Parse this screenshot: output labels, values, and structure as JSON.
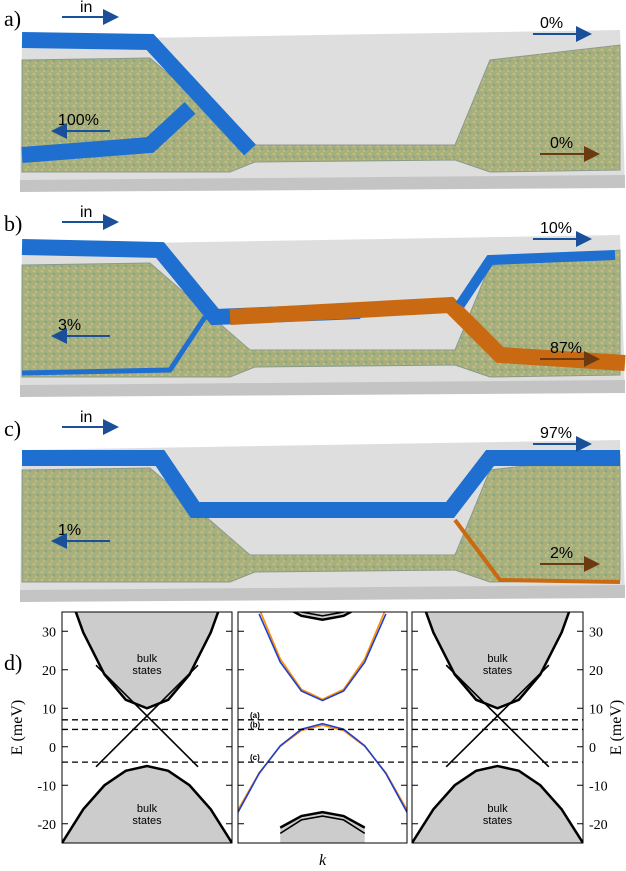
{
  "panels": [
    {
      "label": "a)",
      "input": "in",
      "outputs": [
        "100%",
        "0%",
        "0%"
      ]
    },
    {
      "label": "b)",
      "input": "in",
      "outputs": [
        "3%",
        "10%",
        "87%"
      ]
    },
    {
      "label": "c)",
      "input": "in",
      "outputs": [
        "1%",
        "97%",
        "2%"
      ]
    }
  ],
  "figure_label": "d)",
  "chart_data": [
    {
      "type": "line",
      "ylabel": "E (meV)",
      "ylim": [
        -25,
        35
      ],
      "xlim": [
        -1,
        1
      ],
      "yticks": [
        -20,
        -10,
        0,
        10,
        20,
        30
      ],
      "ytick_labels": "left",
      "hlines": [
        7,
        4.5,
        -4
      ],
      "annotations": [
        [
          "bulk",
          "states"
        ],
        [
          "bulk",
          "states"
        ]
      ],
      "series": [
        {
          "color": "#000000",
          "fill": "#cccccc",
          "fill_to": "top",
          "x": [
            -1,
            -0.75,
            -0.5,
            -0.25,
            0,
            0.25,
            0.5,
            0.75,
            1
          ],
          "values": [
            45,
            29.69,
            18.75,
            12.19,
            10,
            12.19,
            18.75,
            29.69,
            45
          ]
        },
        {
          "color": "#000000",
          "fill": "#cccccc",
          "fill_to": "bottom",
          "x": [
            -1,
            -0.75,
            -0.5,
            -0.25,
            0,
            0.25,
            0.5,
            0.75,
            1
          ],
          "values": [
            -25,
            -16.25,
            -10,
            -6.25,
            -5,
            -6.25,
            -10,
            -16.25,
            -25
          ]
        },
        {
          "color": "#000000",
          "x": [
            -0.6,
            0,
            0.6
          ],
          "values": [
            21.2,
            8,
            -5.2
          ]
        },
        {
          "color": "#000000",
          "x": [
            -0.6,
            0,
            0.6
          ],
          "values": [
            -5.2,
            8,
            21.2
          ]
        }
      ]
    },
    {
      "type": "line",
      "xlabel": "k",
      "ylim": [
        -25,
        35
      ],
      "xlim": [
        -1,
        1
      ],
      "yticks": [
        -20,
        -10,
        0,
        10,
        20,
        30
      ],
      "ytick_labels": "none",
      "hlines": [
        7,
        4.5,
        -4
      ],
      "hline_labels": [
        "(a)",
        "(b)",
        "(c)"
      ],
      "series": [
        {
          "color": "#000000",
          "fill": "#cccccc",
          "fill_to": "top",
          "x": [
            -0.5,
            -0.25,
            0,
            0.25,
            0.5
          ],
          "values": [
            37,
            34,
            33,
            34,
            37
          ]
        },
        {
          "color": "#000000",
          "x": [
            -0.5,
            -0.25,
            0,
            0.25,
            0.5
          ],
          "values": [
            38.5,
            35,
            34,
            35,
            38.5
          ]
        },
        {
          "color": "#000000",
          "fill": "#cccccc",
          "fill_to": "bottom",
          "x": [
            -0.5,
            -0.25,
            0,
            0.25,
            0.5
          ],
          "values": [
            -21,
            -18,
            -17,
            -18,
            -21
          ]
        },
        {
          "color": "#000000",
          "x": [
            -0.5,
            -0.25,
            0,
            0.25,
            0.5
          ],
          "values": [
            -22.5,
            -19,
            -18,
            -19,
            -22.5
          ]
        },
        {
          "color": "#ff8c00",
          "x": [
            -0.75,
            -0.5,
            -0.25,
            0,
            0.25,
            0.5,
            0.75
          ],
          "values": [
            35.9,
            22.8,
            14.9,
            12.3,
            14.9,
            22.8,
            35.9
          ]
        },
        {
          "color": "#1f3fd0",
          "x": [
            -0.75,
            -0.5,
            -0.25,
            0,
            0.25,
            0.5,
            0.75
          ],
          "values": [
            34.5,
            22,
            14.5,
            12,
            14.5,
            22,
            34.5
          ]
        },
        {
          "color": "#ff8c00",
          "x": [
            -1,
            -0.75,
            -0.5,
            -0.25,
            0,
            0.25,
            0.5,
            0.75,
            1
          ],
          "values": [
            -16.4,
            -6.78,
            0.1,
            4.23,
            5.6,
            4.23,
            0.1,
            -6.78,
            -16.4
          ]
        },
        {
          "color": "#1f3fd0",
          "x": [
            -1,
            -0.75,
            -0.5,
            -0.25,
            0,
            0.25,
            0.5,
            0.75,
            1
          ],
          "values": [
            -17,
            -6.94,
            0.25,
            4.56,
            6,
            4.56,
            0.25,
            -6.94,
            -17
          ]
        }
      ]
    },
    {
      "type": "line",
      "ylabel": "E (meV)",
      "ylim": [
        -25,
        35
      ],
      "xlim": [
        -1,
        1
      ],
      "yticks": [
        -20,
        -10,
        0,
        10,
        20,
        30
      ],
      "ytick_labels": "right",
      "hlines": [
        7,
        4.5,
        -4
      ],
      "annotations": [
        [
          "bulk",
          "states"
        ],
        [
          "bulk",
          "states"
        ]
      ],
      "series": [
        {
          "color": "#000000",
          "fill": "#cccccc",
          "fill_to": "top",
          "x": [
            -1,
            -0.75,
            -0.5,
            -0.25,
            0,
            0.25,
            0.5,
            0.75,
            1
          ],
          "values": [
            45,
            29.69,
            18.75,
            12.19,
            10,
            12.19,
            18.75,
            29.69,
            45
          ]
        },
        {
          "color": "#000000",
          "fill": "#cccccc",
          "fill_to": "bottom",
          "x": [
            -1,
            -0.75,
            -0.5,
            -0.25,
            0,
            0.25,
            0.5,
            0.75,
            1
          ],
          "values": [
            -25,
            -16.25,
            -10,
            -6.25,
            -5,
            -6.25,
            -10,
            -16.25,
            -25
          ]
        },
        {
          "color": "#000000",
          "x": [
            -0.6,
            0,
            0.6
          ],
          "values": [
            21.2,
            8,
            -5.2
          ]
        },
        {
          "color": "#000000",
          "x": [
            -0.6,
            0,
            0.6
          ],
          "values": [
            -5.2,
            8,
            21.2
          ]
        }
      ]
    }
  ]
}
